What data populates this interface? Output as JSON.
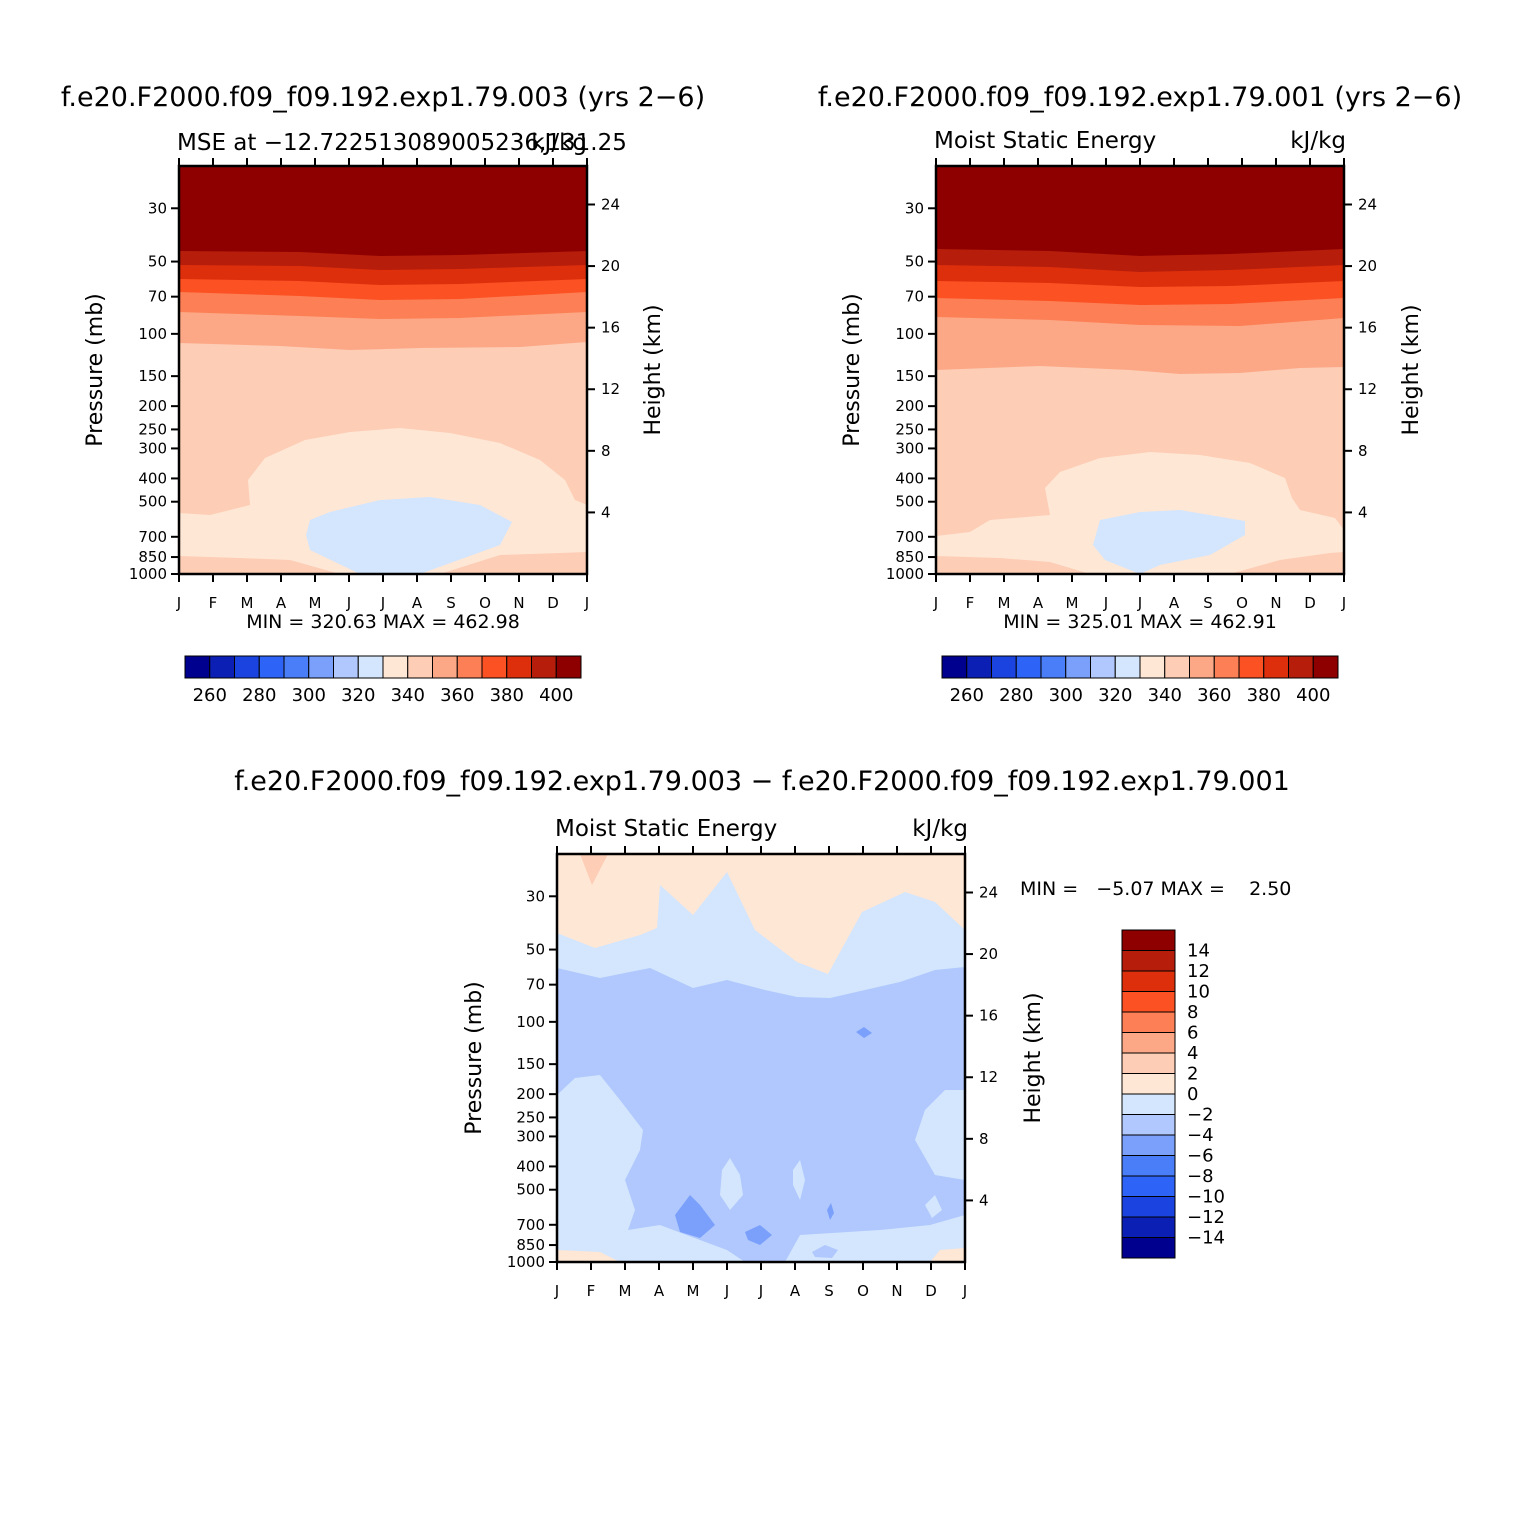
{
  "colors": {
    "abs_levels": [
      "#00008e",
      "#0c1fb4",
      "#1a43e0",
      "#2d64f7",
      "#4a7ef9",
      "#7aa0fc",
      "#b0c8fd",
      "#d3e6fd",
      "#ffe7d6",
      "#fdcdb5",
      "#fca886",
      "#fc7f55",
      "#fb5123",
      "#de2f0c",
      "#b61d0b",
      "#8e0000"
    ],
    "diff_levels": [
      "#00008e",
      "#0c1fb4",
      "#1a43e0",
      "#2d64f7",
      "#4a7ef9",
      "#7aa0fc",
      "#b0c8fd",
      "#d3e6fd",
      "#ffe7d6",
      "#fdcdb5",
      "#fca886",
      "#fc7f55",
      "#fb5123",
      "#de2f0c",
      "#b61d0b",
      "#8e0000"
    ]
  },
  "common": {
    "ylabel": "Pressure (mb)",
    "y2label": "Height (km)",
    "pressure_ticks": [
      "30",
      "50",
      "70",
      "100",
      "150",
      "200",
      "250",
      "300",
      "400",
      "500",
      "700",
      "850",
      "1000"
    ],
    "height_ticks": [
      "24",
      "20",
      "16",
      "12",
      "8",
      "4"
    ],
    "month_ticks": [
      "J",
      "F",
      "M",
      "A",
      "M",
      "J",
      "J",
      "A",
      "S",
      "O",
      "N",
      "D",
      "J"
    ],
    "abs_colorbar_labels": [
      "260",
      "280",
      "300",
      "320",
      "340",
      "360",
      "380",
      "400"
    ],
    "diff_colorbar_labels": [
      "14",
      "12",
      "10",
      "8",
      "6",
      "4",
      "2",
      "0",
      "−2",
      "−4",
      "−6",
      "−8",
      "−10",
      "−12",
      "−14"
    ]
  },
  "panel1": {
    "case": "f.e20.F2000.f09_f09.192.exp1.79.003 (yrs 2−6)",
    "subtitle": "MSE at −12.722513089005236,131.25",
    "units": "kJ/kg",
    "minmax": "MIN = 320.63 MAX = 462.98"
  },
  "panel2": {
    "case": "f.e20.F2000.f09_f09.192.exp1.79.001 (yrs 2−6)",
    "subtitle": "Moist Static Energy",
    "units": "kJ/kg",
    "minmax": "MIN = 325.01 MAX = 462.91"
  },
  "panel3": {
    "case": "f.e20.F2000.f09_f09.192.exp1.79.003 − f.e20.F2000.f09_f09.192.exp1.79.001",
    "subtitle": "Moist Static Energy",
    "units": "kJ/kg",
    "minmax": "MIN =   −5.07 MAX =    2.50"
  },
  "chart_data": [
    {
      "type": "heatmap",
      "title": "f.e20.F2000.f09_f09.192.exp1.79.003 (yrs 2−6)",
      "subtitle": "MSE at −12.722513089005236,131.25",
      "units": "kJ/kg",
      "xlabel": "",
      "ylabel": "Pressure (mb)",
      "y2label": "Height (km)",
      "x": [
        "J",
        "F",
        "M",
        "A",
        "M",
        "J",
        "J",
        "A",
        "S",
        "O",
        "N",
        "D",
        "J"
      ],
      "y_pressure": [
        30,
        50,
        70,
        100,
        150,
        200,
        250,
        300,
        400,
        500,
        700,
        850,
        1000
      ],
      "y_log": true,
      "contour_levels": [
        255,
        260,
        265,
        270,
        275,
        280,
        285,
        290,
        295,
        300,
        305,
        310,
        315,
        320,
        325,
        330,
        335,
        340,
        345,
        350,
        355,
        360,
        365,
        370,
        375,
        380,
        385,
        390,
        395,
        400,
        405
      ],
      "colorbar_levels": [
        260,
        280,
        300,
        320,
        340,
        360,
        380,
        400
      ],
      "bands_by_pressure": [
        {
          "pressure": 30,
          "value": 400
        },
        {
          "pressure": 60,
          "value": 395
        },
        {
          "pressure": 80,
          "value": 375
        },
        {
          "pressure": 100,
          "value": 360
        },
        {
          "pressure": 150,
          "value": 350
        },
        {
          "pressure": 400,
          "value": 340
        },
        {
          "pressure": 700,
          "value": 325
        },
        {
          "pressure": 1000,
          "value": 345
        }
      ],
      "min": 320.63,
      "max": 462.98
    },
    {
      "type": "heatmap",
      "title": "f.e20.F2000.f09_f09.192.exp1.79.001 (yrs 2−6)",
      "subtitle": "Moist Static Energy",
      "units": "kJ/kg",
      "xlabel": "",
      "ylabel": "Pressure (mb)",
      "y2label": "Height (km)",
      "x": [
        "J",
        "F",
        "M",
        "A",
        "M",
        "J",
        "J",
        "A",
        "S",
        "O",
        "N",
        "D",
        "J"
      ],
      "y_pressure": [
        30,
        50,
        70,
        100,
        150,
        200,
        250,
        300,
        400,
        500,
        700,
        850,
        1000
      ],
      "y_log": true,
      "colorbar_levels": [
        260,
        280,
        300,
        320,
        340,
        360,
        380,
        400
      ],
      "bands_by_pressure": [
        {
          "pressure": 30,
          "value": 400
        },
        {
          "pressure": 60,
          "value": 395
        },
        {
          "pressure": 80,
          "value": 375
        },
        {
          "pressure": 100,
          "value": 360
        },
        {
          "pressure": 150,
          "value": 350
        },
        {
          "pressure": 400,
          "value": 340
        },
        {
          "pressure": 700,
          "value": 325
        },
        {
          "pressure": 1000,
          "value": 345
        }
      ],
      "min": 325.01,
      "max": 462.91
    },
    {
      "type": "heatmap",
      "title": "f.e20.F2000.f09_f09.192.exp1.79.003 − f.e20.F2000.f09_f09.192.exp1.79.001",
      "subtitle": "Moist Static Energy",
      "units": "kJ/kg",
      "xlabel": "",
      "ylabel": "Pressure (mb)",
      "y2label": "Height (km)",
      "x": [
        "J",
        "F",
        "M",
        "A",
        "M",
        "J",
        "J",
        "A",
        "S",
        "O",
        "N",
        "D",
        "J"
      ],
      "y_pressure": [
        30,
        50,
        70,
        100,
        150,
        200,
        250,
        300,
        400,
        500,
        700,
        850,
        1000
      ],
      "y_log": true,
      "colorbar_levels": [
        14,
        12,
        10,
        8,
        6,
        4,
        2,
        0,
        -2,
        -4,
        -6,
        -8,
        -10,
        -12,
        -14
      ],
      "dominant_values": {
        "upper_levels": 1,
        "mid_levels": -3,
        "lower_levels": -3,
        "surface": 1
      },
      "min": -5.07,
      "max": 2.5
    }
  ]
}
